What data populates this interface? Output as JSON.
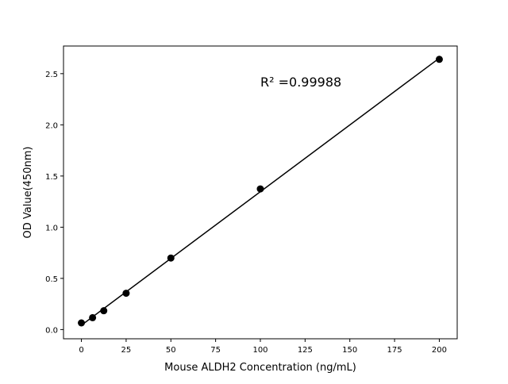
{
  "chart_data": {
    "type": "scatter",
    "title": "",
    "xlabel": "Mouse ALDH2 Concentration (ng/mL)",
    "ylabel": "OD Value(450nm)",
    "xlim": [
      -10,
      210
    ],
    "ylim": [
      -0.09,
      2.77
    ],
    "xticks": [
      0,
      25,
      50,
      75,
      100,
      125,
      150,
      175,
      200
    ],
    "yticks": [
      0.0,
      0.5,
      1.0,
      1.5,
      2.0,
      2.5
    ],
    "xtick_labels": [
      "0",
      "25",
      "50",
      "75",
      "100",
      "125",
      "150",
      "175",
      "200"
    ],
    "ytick_labels": [
      "0.0",
      "0.5",
      "1.0",
      "1.5",
      "2.0",
      "2.5"
    ],
    "grid": false,
    "points": {
      "x": [
        0,
        6.25,
        12.5,
        25,
        50,
        100,
        200
      ],
      "y": [
        0.065,
        0.116,
        0.184,
        0.355,
        0.699,
        1.374,
        2.64
      ]
    },
    "fit_line": "linear",
    "annotation": "R² =0.99988",
    "colors": {
      "marker": "#000000",
      "line": "#000000"
    }
  }
}
